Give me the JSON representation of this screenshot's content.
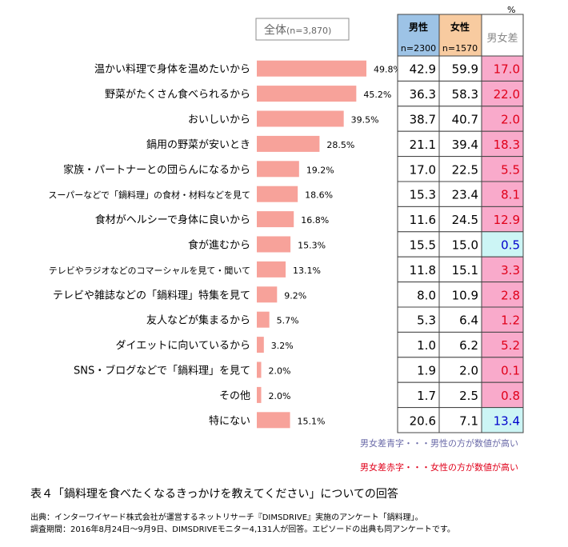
{
  "chart_data": {
    "type": "bar",
    "legend_label": "全体",
    "legend_n": "(n=3,870)",
    "unit_mark": "%",
    "columns": {
      "male": {
        "label": "男性",
        "n": "n=2300",
        "color": "#9dc3e6"
      },
      "female": {
        "label": "女性",
        "n": "n=1570",
        "color": "#f8cba0"
      },
      "diff": {
        "label": "男女差"
      }
    },
    "colors": {
      "bar": "#f7a29a",
      "diff_female_bg": "#f9aacb",
      "diff_male_bg": "#ccf5f5",
      "diff_female_text": "#e0001a",
      "diff_male_text": "#0000cc"
    },
    "categories": [
      "温かい料理で身体を温めたいから",
      "野菜がたくさん食べられるから",
      "おいしいから",
      "鍋用の野菜が安いとき",
      "家族・パートナーとの団らんになるから",
      "スーパーなどで「鍋料理」の食材・材料などを見て",
      "食材がヘルシーで身体に良いから",
      "食が進むから",
      "テレビやラジオなどのコマーシャルを見て・聞いて",
      "テレビや雑誌などの「鍋料理」特集を見て",
      "友人などが集まるから",
      "ダイエットに向いているから",
      "SNS・ブログなどで「鍋料理」を見て",
      "その他",
      "特にない"
    ],
    "small_label_rows": [
      5,
      8
    ],
    "total_values": [
      "49.8%",
      "45.2%",
      "39.5%",
      "28.5%",
      "19.2%",
      "18.6%",
      "16.8%",
      "15.3%",
      "13.1%",
      "9.2%",
      "5.7%",
      "3.2%",
      "2.0%",
      "2.0%",
      "15.1%"
    ],
    "total": [
      49.8,
      45.2,
      39.5,
      28.5,
      19.2,
      18.6,
      16.8,
      15.3,
      13.1,
      9.2,
      5.7,
      3.2,
      2.0,
      2.0,
      15.1
    ],
    "male": [
      "42.9",
      "36.3",
      "38.7",
      "21.1",
      "17.0",
      "15.3",
      "11.6",
      "15.5",
      "11.8",
      "8.0",
      "5.3",
      "1.0",
      "1.9",
      "1.7",
      "20.6"
    ],
    "female": [
      "59.9",
      "58.3",
      "40.7",
      "39.4",
      "22.5",
      "23.4",
      "24.5",
      "15.0",
      "15.1",
      "10.9",
      "6.4",
      "6.2",
      "2.0",
      "2.5",
      "7.1"
    ],
    "diff": [
      "17.0",
      "22.0",
      "2.0",
      "18.3",
      "5.5",
      "8.1",
      "12.9",
      "0.5",
      "3.3",
      "2.8",
      "1.2",
      "5.2",
      "0.1",
      "0.8",
      "13.4"
    ],
    "diff_side": [
      "female",
      "female",
      "female",
      "female",
      "female",
      "female",
      "female",
      "male",
      "female",
      "female",
      "female",
      "female",
      "female",
      "female",
      "male"
    ]
  },
  "notes": {
    "blue": "男女差青字・・・男性の方が数値が高い",
    "red": "男女差赤字・・・女性の方が数値が高い"
  },
  "caption": "表４「鍋料理を食べたくなるきっかけを教えてください」についての回答",
  "source_line1": "出典：インターワイヤード株式会社が運営するネットリサーチ『DIMSDRIVE』実施のアンケート「鍋料理」。",
  "source_line2": "調査期間：2016年8月24日～9月9日、DIMSDRIVEモニター4,131人が回答。エピソードの出典も同アンケートです。"
}
